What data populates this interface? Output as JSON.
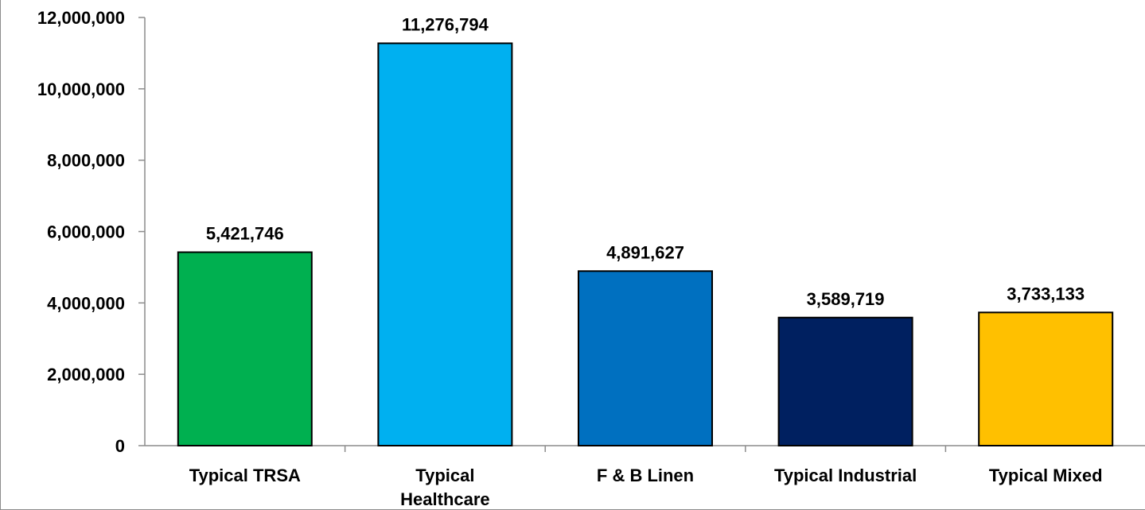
{
  "chart_data": {
    "type": "bar",
    "title": "",
    "xlabel": "",
    "ylabel": "",
    "ylim": [
      0,
      12000000
    ],
    "yticks": [
      0,
      2000000,
      4000000,
      6000000,
      8000000,
      10000000,
      12000000
    ],
    "ytick_labels": [
      "0",
      "2,000,000",
      "4,000,000",
      "6,000,000",
      "8,000,000",
      "10,000,000",
      "12,000,000"
    ],
    "grid": false,
    "legend": "none",
    "categories": [
      [
        "Typical TRSA"
      ],
      [
        "Typical",
        "Healthcare"
      ],
      [
        "F & B Linen"
      ],
      [
        "Typical Industrial"
      ],
      [
        "Typical Mixed"
      ]
    ],
    "values": [
      5421746,
      11276794,
      4891627,
      3589719,
      3733133
    ],
    "data_labels": [
      "5,421,746",
      "11,276,794",
      "4,891,627",
      "3,589,719",
      "3,733,133"
    ],
    "colors": [
      "#00B050",
      "#00B0F0",
      "#0070C0",
      "#002060",
      "#FFC000"
    ]
  }
}
